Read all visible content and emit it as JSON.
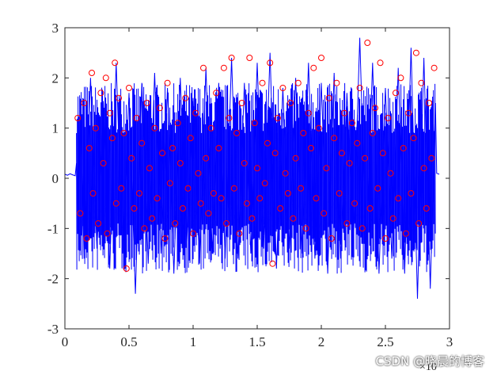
{
  "chart_data": {
    "type": "line",
    "title": "",
    "xlabel": "",
    "ylabel": "",
    "x_exponent_label": "×10",
    "xlim": [
      0,
      3
    ],
    "ylim": [
      -3,
      3
    ],
    "xticks": [
      "0",
      "0.5",
      "1",
      "1.5",
      "2",
      "2.5",
      "3"
    ],
    "yticks": [
      "-3",
      "-2",
      "-1",
      "0",
      "1",
      "2",
      "3"
    ],
    "grid": false,
    "legend": "none",
    "series": [
      {
        "style": "line",
        "color": "#0000ff",
        "description_range": {
          "x_start": 0.09,
          "x_end": 2.89
        },
        "x": [
          0.0,
          0.02,
          0.04,
          0.06,
          0.08,
          0.09,
          0.1,
          0.12,
          0.15,
          0.2,
          0.25,
          0.3,
          0.35,
          0.4,
          0.45,
          0.5,
          0.55,
          0.6,
          0.65,
          0.7,
          0.75,
          0.8,
          0.85,
          0.9,
          0.95,
          1.0,
          1.05,
          1.1,
          1.15,
          1.2,
          1.25,
          1.3,
          1.35,
          1.4,
          1.45,
          1.5,
          1.55,
          1.6,
          1.65,
          1.7,
          1.75,
          1.8,
          1.85,
          1.9,
          1.95,
          2.0,
          2.05,
          2.1,
          2.15,
          2.2,
          2.25,
          2.3,
          2.35,
          2.4,
          2.45,
          2.5,
          2.55,
          2.6,
          2.65,
          2.7,
          2.75,
          2.8,
          2.85,
          2.89,
          2.9,
          2.92
        ],
        "y": [
          0.08,
          0.06,
          0.09,
          0.07,
          0.05,
          0.3,
          -1.1,
          1.4,
          -1.6,
          2.0,
          -1.4,
          1.5,
          -1.8,
          2.3,
          -1.5,
          1.7,
          -2.3,
          1.9,
          -1.7,
          2.1,
          -1.5,
          1.8,
          -1.9,
          2.0,
          -1.3,
          1.6,
          -1.7,
          2.2,
          -1.5,
          1.9,
          -1.6,
          2.4,
          -1.6,
          1.9,
          -1.5,
          2.3,
          -1.4,
          2.5,
          -1.8,
          1.8,
          -1.4,
          2.0,
          -1.5,
          2.3,
          -1.6,
          1.9,
          -1.9,
          2.1,
          -1.6,
          1.7,
          -1.3,
          2.8,
          -1.5,
          2.3,
          -1.9,
          1.8,
          -1.6,
          2.2,
          -1.9,
          2.6,
          -2.4,
          2.4,
          -2.2,
          1.5,
          0.1,
          0.08
        ]
      },
      {
        "style": "markers",
        "marker": "circle-open",
        "color": "#ff0000",
        "x": [
          0.1,
          0.12,
          0.15,
          0.17,
          0.19,
          0.21,
          0.22,
          0.24,
          0.26,
          0.28,
          0.3,
          0.32,
          0.33,
          0.35,
          0.37,
          0.39,
          0.4,
          0.42,
          0.44,
          0.46,
          0.48,
          0.5,
          0.52,
          0.54,
          0.56,
          0.58,
          0.6,
          0.62,
          0.64,
          0.66,
          0.68,
          0.7,
          0.72,
          0.74,
          0.76,
          0.78,
          0.8,
          0.82,
          0.84,
          0.86,
          0.88,
          0.9,
          0.92,
          0.94,
          0.96,
          0.98,
          1.0,
          1.02,
          1.04,
          1.06,
          1.08,
          1.1,
          1.12,
          1.14,
          1.16,
          1.18,
          1.2,
          1.22,
          1.24,
          1.26,
          1.28,
          1.3,
          1.32,
          1.34,
          1.36,
          1.38,
          1.4,
          1.42,
          1.44,
          1.46,
          1.48,
          1.5,
          1.52,
          1.54,
          1.56,
          1.58,
          1.6,
          1.62,
          1.64,
          1.66,
          1.68,
          1.7,
          1.72,
          1.74,
          1.76,
          1.78,
          1.8,
          1.82,
          1.84,
          1.86,
          1.88,
          1.9,
          1.92,
          1.94,
          1.96,
          1.98,
          2.0,
          2.02,
          2.04,
          2.06,
          2.08,
          2.1,
          2.12,
          2.14,
          2.16,
          2.18,
          2.2,
          2.22,
          2.24,
          2.26,
          2.28,
          2.3,
          2.32,
          2.34,
          2.36,
          2.38,
          2.4,
          2.42,
          2.44,
          2.46,
          2.48,
          2.5,
          2.52,
          2.54,
          2.56,
          2.58,
          2.6,
          2.62,
          2.64,
          2.66,
          2.68,
          2.7,
          2.72,
          2.74,
          2.76,
          2.78,
          2.8,
          2.82,
          2.84,
          2.86,
          2.88
        ],
        "y": [
          1.2,
          -0.7,
          1.5,
          -1.2,
          0.6,
          2.1,
          -0.3,
          1.0,
          -0.9,
          1.7,
          0.3,
          2.0,
          -1.1,
          1.3,
          0.8,
          2.3,
          -0.5,
          1.6,
          -0.2,
          0.9,
          -1.8,
          1.8,
          0.4,
          -0.6,
          1.2,
          -0.3,
          0.7,
          -1.0,
          1.5,
          0.2,
          -0.8,
          1.0,
          -0.4,
          1.4,
          0.5,
          -1.2,
          1.9,
          -0.1,
          0.6,
          -0.9,
          1.1,
          0.3,
          -0.6,
          1.6,
          -0.2,
          0.8,
          -1.1,
          1.3,
          0.1,
          -0.5,
          2.2,
          0.4,
          -0.7,
          1.0,
          -0.3,
          1.7,
          0.6,
          -0.4,
          2.2,
          -0.9,
          1.2,
          2.4,
          -0.2,
          0.9,
          -1.1,
          1.5,
          0.3,
          -0.5,
          2.4,
          -0.8,
          1.1,
          0.2,
          -0.4,
          1.9,
          -0.1,
          0.7,
          2.3,
          -1.7,
          0.5,
          1.2,
          -0.6,
          1.8,
          0.1,
          -0.3,
          1.5,
          -0.8,
          0.4,
          1.9,
          -0.2,
          0.9,
          -1.0,
          1.3,
          0.6,
          2.2,
          -0.4,
          1.0,
          2.4,
          -0.7,
          0.2,
          1.6,
          -1.2,
          0.8,
          1.9,
          -0.3,
          0.5,
          1.3,
          -0.9,
          0.3,
          1.1,
          -0.5,
          0.7,
          1.8,
          -1.0,
          0.4,
          2.7,
          -0.6,
          0.9,
          1.4,
          -0.2,
          2.3,
          0.5,
          -1.2,
          1.2,
          0.1,
          -0.8,
          1.7,
          -0.4,
          2.0,
          0.6,
          -1.1,
          1.3,
          -0.3,
          0.8,
          2.5,
          -0.9,
          1.9,
          0.2,
          -0.6,
          1.5,
          0.4,
          2.2
        ]
      }
    ]
  },
  "watermark": "CSDN @晓晨的博客",
  "colors": {
    "line": "#0000ff",
    "markers": "#ff0000",
    "axes": "#262626",
    "background": "#ffffff"
  }
}
